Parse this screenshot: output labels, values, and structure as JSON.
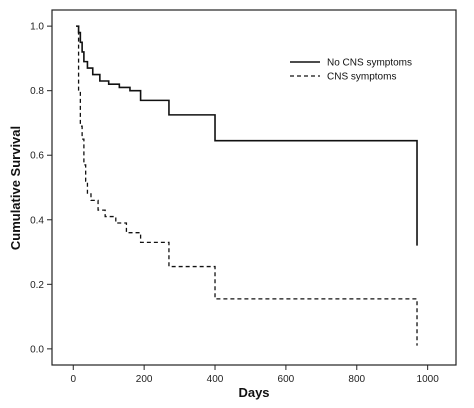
{
  "chart_data": {
    "type": "line",
    "step": true,
    "title": "",
    "xlabel": "Days",
    "ylabel": "Cumulative Survival",
    "xlim": [
      -60,
      1080
    ],
    "ylim": [
      -0.05,
      1.05
    ],
    "xticks": [
      0,
      200,
      400,
      600,
      800,
      1000
    ],
    "xtick_labels": [
      "0",
      "200",
      "400",
      "600",
      "800",
      "1000"
    ],
    "yticks": [
      0.0,
      0.2,
      0.4,
      0.6,
      0.8,
      1.0
    ],
    "ytick_labels": [
      "0.0",
      "0.2",
      "0.4",
      "0.6",
      "0.8",
      "1.0"
    ],
    "grid": false,
    "legend_position": "top-right",
    "series": [
      {
        "name": "No CNS symptoms",
        "style": "solid",
        "color": "#111111",
        "x": [
          8,
          15,
          20,
          25,
          30,
          40,
          55,
          75,
          100,
          130,
          160,
          190,
          270,
          400,
          970,
          970
        ],
        "y": [
          1.0,
          0.98,
          0.95,
          0.92,
          0.89,
          0.87,
          0.85,
          0.83,
          0.82,
          0.81,
          0.8,
          0.77,
          0.725,
          0.645,
          0.645,
          0.32
        ]
      },
      {
        "name": "CNS symptoms",
        "style": "dashed",
        "color": "#111111",
        "x": [
          8,
          15,
          20,
          25,
          30,
          35,
          40,
          50,
          70,
          90,
          120,
          150,
          190,
          270,
          400,
          970,
          970
        ],
        "y": [
          1.0,
          0.8,
          0.69,
          0.65,
          0.57,
          0.52,
          0.48,
          0.46,
          0.43,
          0.41,
          0.39,
          0.36,
          0.33,
          0.255,
          0.155,
          0.155,
          0.01
        ]
      }
    ]
  }
}
